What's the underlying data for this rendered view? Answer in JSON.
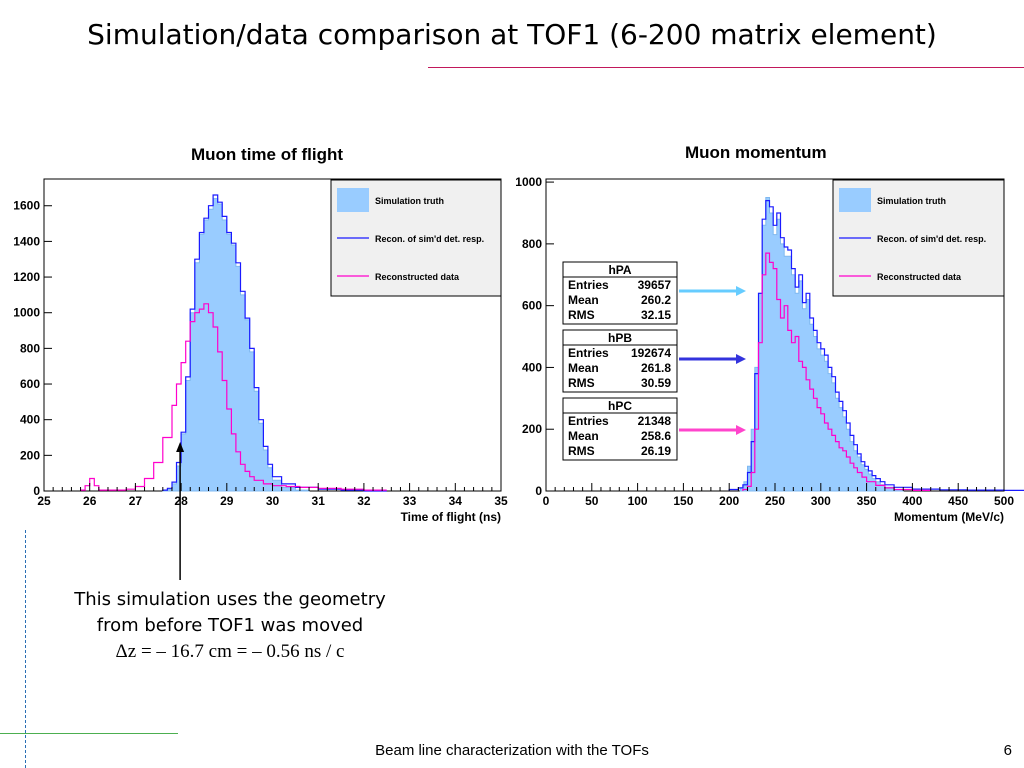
{
  "slide": {
    "title": "Simulation/data comparison at TOF1 (6-200 matrix element)",
    "note_line1": "This simulation uses the geometry",
    "note_line2": "from before TOF1 was moved",
    "note_formula": "Δz = – 16.7 cm = – 0.56 ns / c",
    "footer": "Beam line characterization with the TOFs",
    "page_number": "6"
  },
  "colors": {
    "simulation_truth_fill": "#99ccff",
    "recon_line": "#1a1aff",
    "data_line": "#ff00cc",
    "arrow_hpa": "#66ccff",
    "arrow_hpb": "#3333dd",
    "arrow_hpc": "#ff44cc"
  },
  "chart_data": [
    {
      "type": "histogram",
      "title": "Muon time of flight",
      "xlabel": "Time of flight (ns)",
      "ylabel": "",
      "xlim": [
        25,
        35
      ],
      "ylim": [
        0,
        1750
      ],
      "xticks": [
        "25",
        "26",
        "27",
        "28",
        "29",
        "30",
        "31",
        "32",
        "33",
        "34",
        "35"
      ],
      "yticks": [
        "0",
        "200",
        "400",
        "600",
        "800",
        "1000",
        "1200",
        "1400",
        "1600"
      ],
      "legend": [
        "Simulation truth",
        "Recon. of sim'd det. resp.",
        "Reconstructed data"
      ],
      "legend_position": "top-right",
      "series": [
        {
          "name": "Simulation truth",
          "kind": "filled",
          "x": [
            27.6,
            27.7,
            27.8,
            27.9,
            28.0,
            28.1,
            28.2,
            28.3,
            28.4,
            28.5,
            28.6,
            28.7,
            28.8,
            28.9,
            29.0,
            29.1,
            29.2,
            29.3,
            29.4,
            29.5,
            29.6,
            29.7,
            29.8,
            29.9,
            30.0,
            30.2,
            30.5
          ],
          "y": [
            2,
            10,
            40,
            140,
            320,
            620,
            1000,
            1280,
            1440,
            1520,
            1580,
            1640,
            1610,
            1520,
            1440,
            1380,
            1260,
            1100,
            960,
            780,
            560,
            380,
            230,
            130,
            60,
            20,
            5
          ]
        },
        {
          "name": "Recon. of sim'd det. resp.",
          "kind": "line",
          "x": [
            27.6,
            27.7,
            27.8,
            27.9,
            28.0,
            28.1,
            28.2,
            28.3,
            28.4,
            28.5,
            28.6,
            28.7,
            28.8,
            28.9,
            29.0,
            29.1,
            29.2,
            29.3,
            29.4,
            29.5,
            29.6,
            29.7,
            29.8,
            29.9,
            30.0,
            30.2,
            30.5,
            31.0,
            31.5,
            32.0
          ],
          "y": [
            5,
            15,
            50,
            160,
            330,
            640,
            1020,
            1300,
            1450,
            1530,
            1600,
            1660,
            1620,
            1540,
            1450,
            1390,
            1280,
            1120,
            970,
            800,
            580,
            400,
            250,
            150,
            80,
            40,
            20,
            10,
            5,
            0
          ]
        },
        {
          "name": "Reconstructed data",
          "kind": "line",
          "x": [
            25.8,
            25.9,
            26.0,
            26.1,
            26.2,
            26.5,
            26.8,
            27.0,
            27.2,
            27.4,
            27.6,
            27.8,
            27.9,
            28.0,
            28.1,
            28.2,
            28.3,
            28.4,
            28.5,
            28.6,
            28.7,
            28.8,
            28.9,
            29.0,
            29.1,
            29.2,
            29.3,
            29.4,
            29.5,
            29.6,
            29.8,
            30.0,
            30.3,
            30.6,
            31.0,
            31.5,
            32.0
          ],
          "y": [
            5,
            30,
            70,
            30,
            5,
            5,
            10,
            25,
            70,
            160,
            300,
            480,
            600,
            720,
            840,
            950,
            1000,
            1020,
            1050,
            1000,
            920,
            780,
            620,
            460,
            320,
            220,
            150,
            110,
            80,
            60,
            40,
            30,
            25,
            20,
            15,
            10,
            5
          ]
        }
      ],
      "annotation": "arrow pointing to x = 28"
    },
    {
      "type": "histogram",
      "title": "Muon momentum",
      "xlabel": "Momentum (MeV/c)",
      "ylabel": "",
      "xlim": [
        0,
        500
      ],
      "ylim": [
        0,
        1010
      ],
      "xticks": [
        "0",
        "50",
        "100",
        "150",
        "200",
        "250",
        "300",
        "350",
        "400",
        "450",
        "500"
      ],
      "yticks": [
        "0",
        "200",
        "400",
        "600",
        "800",
        "1000"
      ],
      "legend": [
        "Simulation truth",
        "Recon. of sim'd det. resp.",
        "Reconstructed data"
      ],
      "legend_position": "top-right",
      "series": [
        {
          "name": "Simulation truth",
          "kind": "filled",
          "x": [
            212,
            216,
            220,
            224,
            228,
            232,
            236,
            240,
            244,
            248,
            252,
            256,
            260,
            264,
            268,
            272,
            276,
            280,
            284,
            288,
            292,
            296,
            300,
            304,
            308,
            312,
            316,
            320,
            324,
            328,
            332,
            336,
            340,
            344,
            348,
            352,
            356,
            360,
            365,
            370,
            380
          ],
          "y": [
            10,
            30,
            80,
            200,
            400,
            640,
            860,
            950,
            900,
            830,
            880,
            800,
            760,
            760,
            700,
            640,
            680,
            590,
            620,
            540,
            500,
            460,
            440,
            420,
            380,
            350,
            300,
            270,
            240,
            200,
            160,
            130,
            110,
            85,
            70,
            55,
            40,
            30,
            20,
            12,
            5
          ]
        },
        {
          "name": "Recon. of sim'd det. resp.",
          "kind": "line",
          "x": [
            200,
            210,
            215,
            220,
            224,
            228,
            232,
            236,
            240,
            244,
            248,
            252,
            256,
            260,
            264,
            268,
            272,
            276,
            280,
            284,
            288,
            292,
            296,
            300,
            304,
            308,
            312,
            316,
            320,
            324,
            328,
            332,
            336,
            340,
            344,
            348,
            352,
            356,
            360,
            365,
            370,
            380,
            400,
            430,
            460,
            500
          ],
          "y": [
            5,
            10,
            20,
            60,
            160,
            380,
            640,
            880,
            940,
            920,
            860,
            900,
            820,
            790,
            780,
            720,
            660,
            700,
            610,
            640,
            560,
            520,
            480,
            460,
            440,
            400,
            370,
            320,
            290,
            260,
            220,
            180,
            150,
            120,
            95,
            80,
            65,
            50,
            40,
            30,
            20,
            12,
            6,
            4,
            3,
            2
          ]
        },
        {
          "name": "Reconstructed data",
          "kind": "line",
          "x": [
            215,
            220,
            224,
            228,
            232,
            236,
            240,
            244,
            248,
            252,
            256,
            260,
            264,
            268,
            272,
            276,
            280,
            284,
            288,
            292,
            296,
            300,
            304,
            308,
            312,
            316,
            320,
            324,
            328,
            332,
            336,
            340,
            345,
            350,
            360,
            370,
            380,
            400
          ],
          "y": [
            5,
            15,
            60,
            200,
            480,
            700,
            770,
            740,
            720,
            620,
            560,
            600,
            520,
            480,
            500,
            420,
            400,
            360,
            330,
            300,
            270,
            250,
            220,
            200,
            180,
            160,
            140,
            130,
            110,
            90,
            75,
            60,
            45,
            30,
            18,
            10,
            5,
            2
          ]
        }
      ],
      "stats_boxes": [
        {
          "name": "hPA",
          "entries_label": "Entries",
          "entries": "39657",
          "mean_label": "Mean",
          "mean": "260.2",
          "rms_label": "RMS",
          "rms": "32.15"
        },
        {
          "name": "hPB",
          "entries_label": "Entries",
          "entries": "192674",
          "mean_label": "Mean",
          "mean": "261.8",
          "rms_label": "RMS",
          "rms": "30.59"
        },
        {
          "name": "hPC",
          "entries_label": "Entries",
          "entries": "21348",
          "mean_label": "Mean",
          "mean": "258.6",
          "rms_label": "RMS",
          "rms": "26.19"
        }
      ]
    }
  ]
}
